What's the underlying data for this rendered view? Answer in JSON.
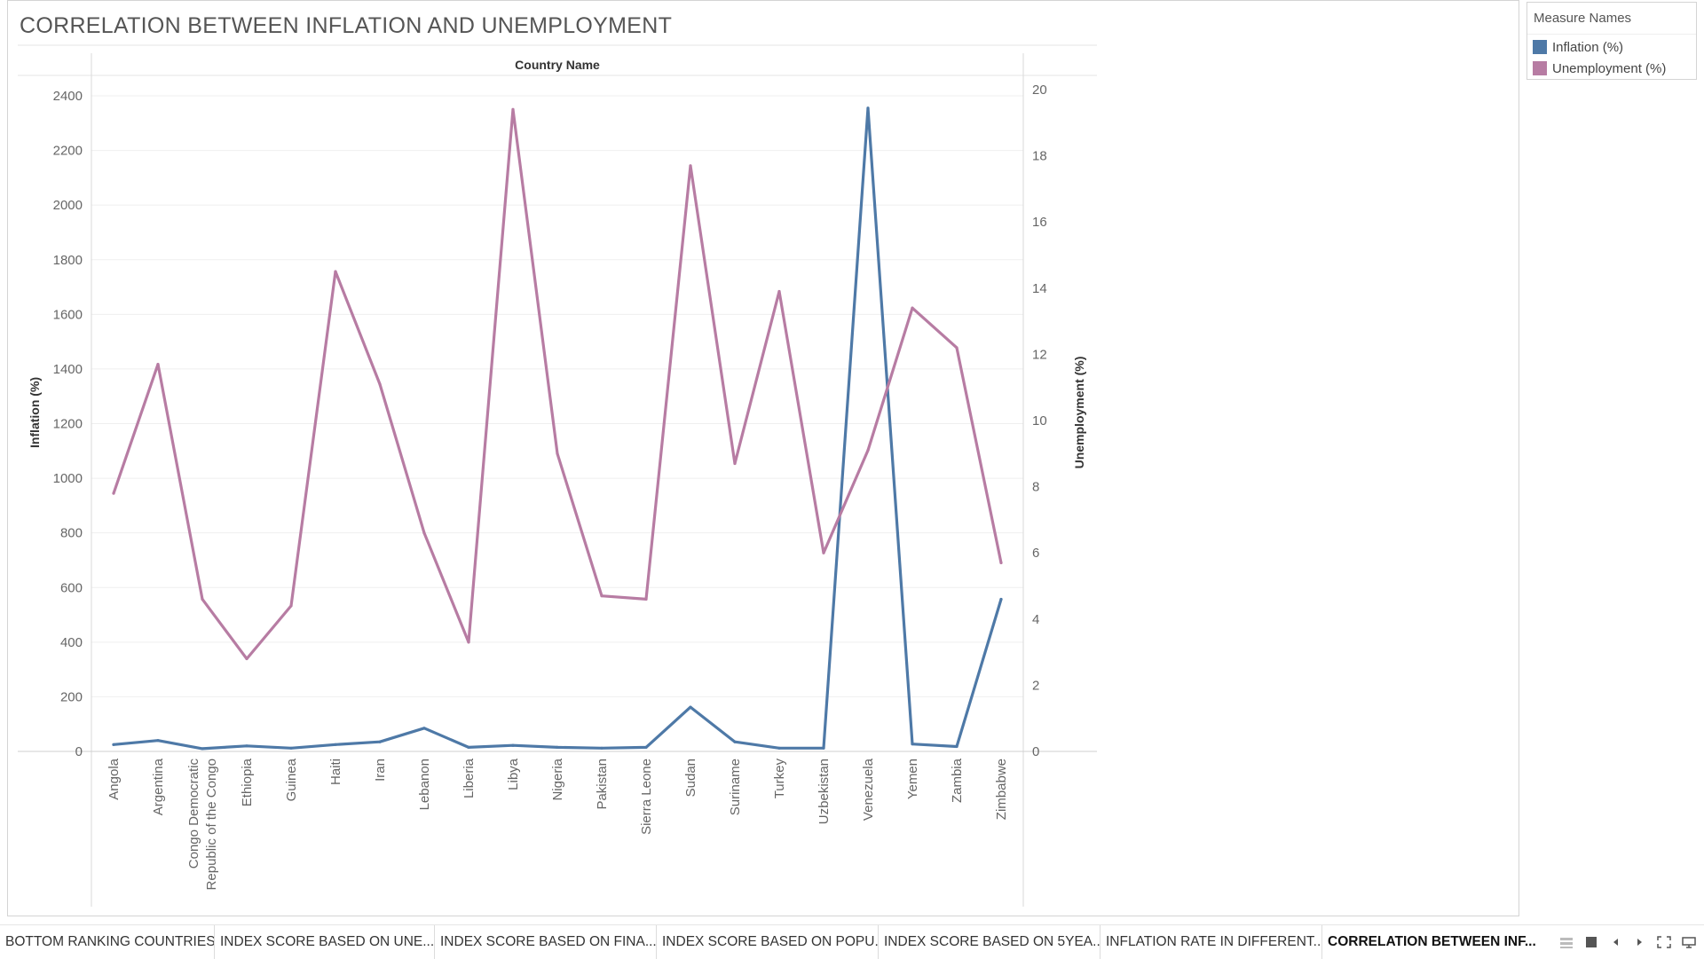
{
  "title": "CORRELATION BETWEEN INFLATION AND UNEMPLOYMENT",
  "colors": {
    "inflation": "#4e79a7",
    "unemployment": "#b77ca3"
  },
  "legend": {
    "title": "Measure Names",
    "items": [
      {
        "label": "Inflation (%)",
        "color": "#4e79a7"
      },
      {
        "label": "Unemployment (%)",
        "color": "#b77ca3"
      }
    ]
  },
  "chart_data": {
    "type": "line",
    "title": "",
    "xlabel": "Country Name",
    "ylabel": "Inflation (%)",
    "y2label": "Unemployment (%)",
    "categories": [
      "Angola",
      "Argentina",
      "Congo Democratic Republic of the Congo",
      "Ethiopia",
      "Guinea",
      "Haiti",
      "Iran",
      "Lebanon",
      "Liberia",
      "Libya",
      "Nigeria",
      "Pakistan",
      "Sierra Leone",
      "Sudan",
      "Suriname",
      "Turkey",
      "Uzbekistan",
      "Venezuela",
      "Yemen",
      "Zambia",
      "Zimbabwe"
    ],
    "category_lines": [
      [
        "Angola"
      ],
      [
        "Argentina"
      ],
      [
        "Congo Democratic",
        "Republic of the Congo"
      ],
      [
        "Ethiopia"
      ],
      [
        "Guinea"
      ],
      [
        "Haiti"
      ],
      [
        "Iran"
      ],
      [
        "Lebanon"
      ],
      [
        "Liberia"
      ],
      [
        "Libya"
      ],
      [
        "Nigeria"
      ],
      [
        "Pakistan"
      ],
      [
        "Sierra Leone"
      ],
      [
        "Sudan"
      ],
      [
        "Suriname"
      ],
      [
        "Turkey"
      ],
      [
        "Uzbekistan"
      ],
      [
        "Venezuela"
      ],
      [
        "Yemen"
      ],
      [
        "Zambia"
      ],
      [
        "Zimbabwe"
      ]
    ],
    "ylim": [
      0,
      2400
    ],
    "y_ticks": [
      0,
      200,
      400,
      600,
      800,
      1000,
      1200,
      1400,
      1600,
      1800,
      2000,
      2200,
      2400
    ],
    "y2lim": [
      0,
      20
    ],
    "y2_ticks": [
      0,
      2,
      4,
      6,
      8,
      10,
      12,
      14,
      16,
      18,
      20
    ],
    "grid": true,
    "legend_position": "top-right",
    "series": [
      {
        "name": "Inflation (%)",
        "axis": "left",
        "color": "#4e79a7",
        "values": [
          25,
          40,
          10,
          20,
          12,
          25,
          35,
          85,
          15,
          22,
          15,
          12,
          15,
          162,
          35,
          12,
          12,
          2355,
          27,
          18,
          557
        ]
      },
      {
        "name": "Unemployment (%)",
        "axis": "right",
        "color": "#b77ca3",
        "values": [
          7.8,
          11.7,
          4.6,
          2.8,
          4.4,
          14.5,
          11.1,
          6.6,
          3.3,
          19.4,
          9.0,
          4.7,
          4.6,
          17.7,
          8.7,
          13.9,
          6.0,
          9.1,
          13.4,
          12.2,
          5.7
        ]
      }
    ]
  },
  "tabs": [
    {
      "label": "BOTTOM RANKING COUNTRIES",
      "active": false
    },
    {
      "label": "INDEX SCORE BASED ON UNE...",
      "active": false
    },
    {
      "label": "INDEX SCORE BASED ON  FINA...",
      "active": false
    },
    {
      "label": "INDEX SCORE BASED ON POPU...",
      "active": false
    },
    {
      "label": "INDEX SCORE BASED ON 5YEA...",
      "active": false
    },
    {
      "label": "INFLATION RATE IN DIFFERENT...",
      "active": false
    },
    {
      "label": "CORRELATION BETWEEN INF...",
      "active": true
    }
  ],
  "tab_controls": [
    {
      "icon": "grid-view-icon"
    },
    {
      "icon": "single-view-icon"
    },
    {
      "icon": "prev-arrow-icon"
    },
    {
      "icon": "next-arrow-icon"
    },
    {
      "icon": "fullscreen-icon"
    },
    {
      "icon": "present-icon"
    }
  ]
}
